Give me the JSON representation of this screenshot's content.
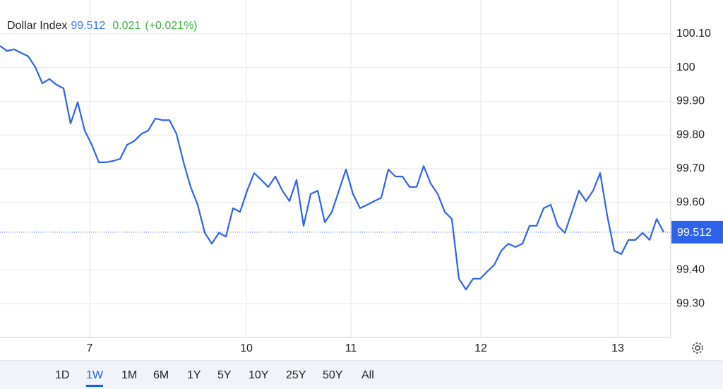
{
  "chart_data": {
    "type": "line",
    "title": "Dollar Index",
    "price": 99.512,
    "change": 0.021,
    "change_label": "(+0.021%)",
    "ylim": [
      99.2,
      100.2
    ],
    "yticks": [
      {
        "value": 100.1,
        "label": "100.10"
      },
      100,
      {
        "value": 99.9,
        "label": "99.90"
      },
      {
        "value": 99.8,
        "label": "99.80"
      },
      {
        "value": 99.7,
        "label": "99.70"
      },
      {
        "value": 99.6,
        "label": "99.60"
      },
      {
        "value": 99.4,
        "label": "99.40"
      },
      {
        "value": 99.3,
        "label": "99.30"
      }
    ],
    "xlim": [
      0,
      95
    ],
    "xticks": [
      {
        "value": 12.7,
        "label": "7"
      },
      {
        "value": 34.9,
        "label": "10"
      },
      {
        "value": 49.7,
        "label": "11"
      },
      {
        "value": 68.1,
        "label": "12"
      },
      {
        "value": 87.5,
        "label": "13"
      }
    ],
    "grid": true,
    "series": [
      {
        "name": "Dollar Index",
        "color": "#2f62ea",
        "values": [
          100.064,
          100.049,
          100.054,
          100.043,
          100.033,
          100.001,
          99.953,
          99.966,
          99.949,
          99.938,
          99.834,
          99.897,
          99.813,
          99.771,
          99.719,
          99.719,
          99.723,
          99.729,
          99.771,
          99.782,
          99.803,
          99.813,
          99.849,
          99.844,
          99.844,
          99.803,
          99.719,
          99.646,
          99.593,
          99.51,
          99.478,
          99.51,
          99.499,
          99.583,
          99.572,
          99.635,
          99.687,
          99.667,
          99.646,
          99.677,
          99.635,
          99.604,
          99.667,
          99.531,
          99.625,
          99.635,
          99.541,
          99.572,
          99.635,
          99.698,
          99.625,
          99.583,
          99.593,
          99.604,
          99.614,
          99.698,
          99.677,
          99.677,
          99.646,
          99.646,
          99.708,
          99.656,
          99.625,
          99.572,
          99.551,
          99.374,
          99.342,
          99.374,
          99.374,
          99.395,
          99.415,
          99.457,
          99.478,
          99.468,
          99.478,
          99.531,
          99.531,
          99.583,
          99.593,
          99.531,
          99.51,
          99.572,
          99.635,
          99.604,
          99.635,
          99.687,
          99.562,
          99.457,
          99.447,
          99.489,
          99.489,
          99.51,
          99.489,
          99.551,
          99.512
        ]
      }
    ]
  },
  "controls": {
    "ranges": [
      "1D",
      "1W",
      "1M",
      "6M",
      "1Y",
      "5Y",
      "10Y",
      "25Y",
      "50Y",
      "All"
    ],
    "selected": 1
  }
}
